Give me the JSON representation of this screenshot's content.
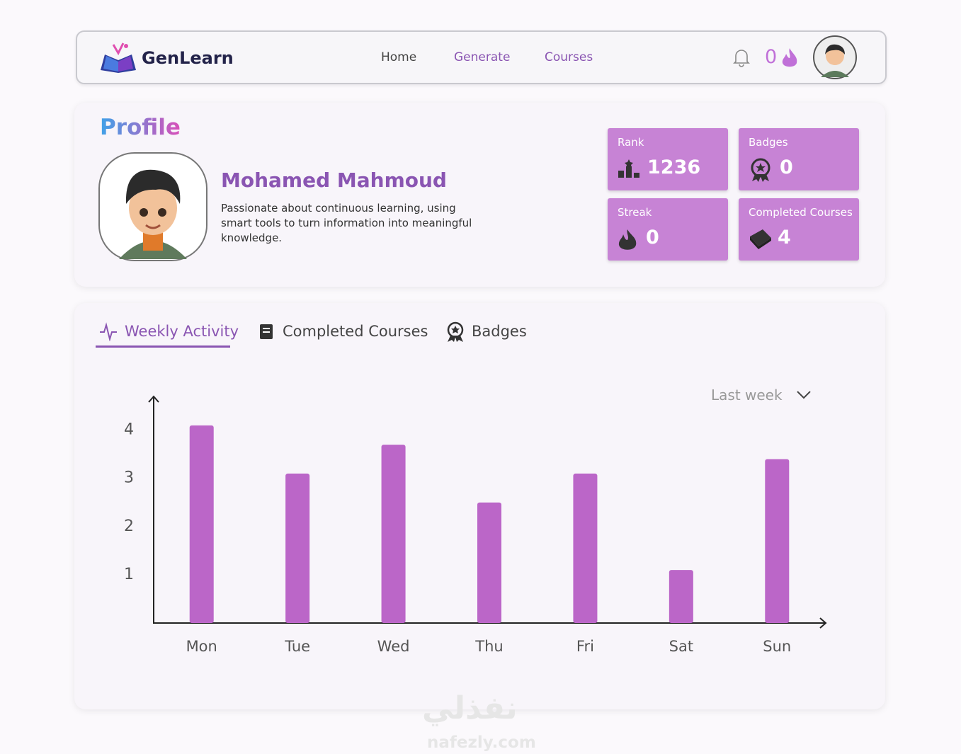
{
  "nav": {
    "brand": "GenLearn",
    "links": [
      "Home",
      "Generate",
      "Courses"
    ],
    "streak": 0
  },
  "profile": {
    "title": "Profile",
    "name": "Mohamed Mahmoud",
    "bio": "Passionate about continuous learning, using smart tools to turn information into meaningful knowledge.",
    "stats": [
      {
        "label": "Rank",
        "value": 1236
      },
      {
        "label": "Badges",
        "value": 0
      },
      {
        "label": "Streak",
        "value": 0
      },
      {
        "label": "Completed Courses",
        "value": 4
      }
    ]
  },
  "tabs": [
    "Weekly Activity",
    "Completed Courses",
    "Badges"
  ],
  "period": "Last week",
  "chart_data": {
    "type": "bar",
    "categories": [
      "Mon",
      "Tue",
      "Wed",
      "Thu",
      "Fri",
      "Sat",
      "Sun"
    ],
    "values": [
      4.1,
      3.1,
      3.7,
      2.5,
      3.1,
      1.1,
      3.4
    ],
    "color": "#bb66c8",
    "ylim": [
      0,
      4.7
    ],
    "yticks": [
      1,
      2,
      3,
      4
    ],
    "grid": false
  },
  "watermark": {
    "arabic": "نفذلي",
    "latin": "nafezly.com"
  }
}
